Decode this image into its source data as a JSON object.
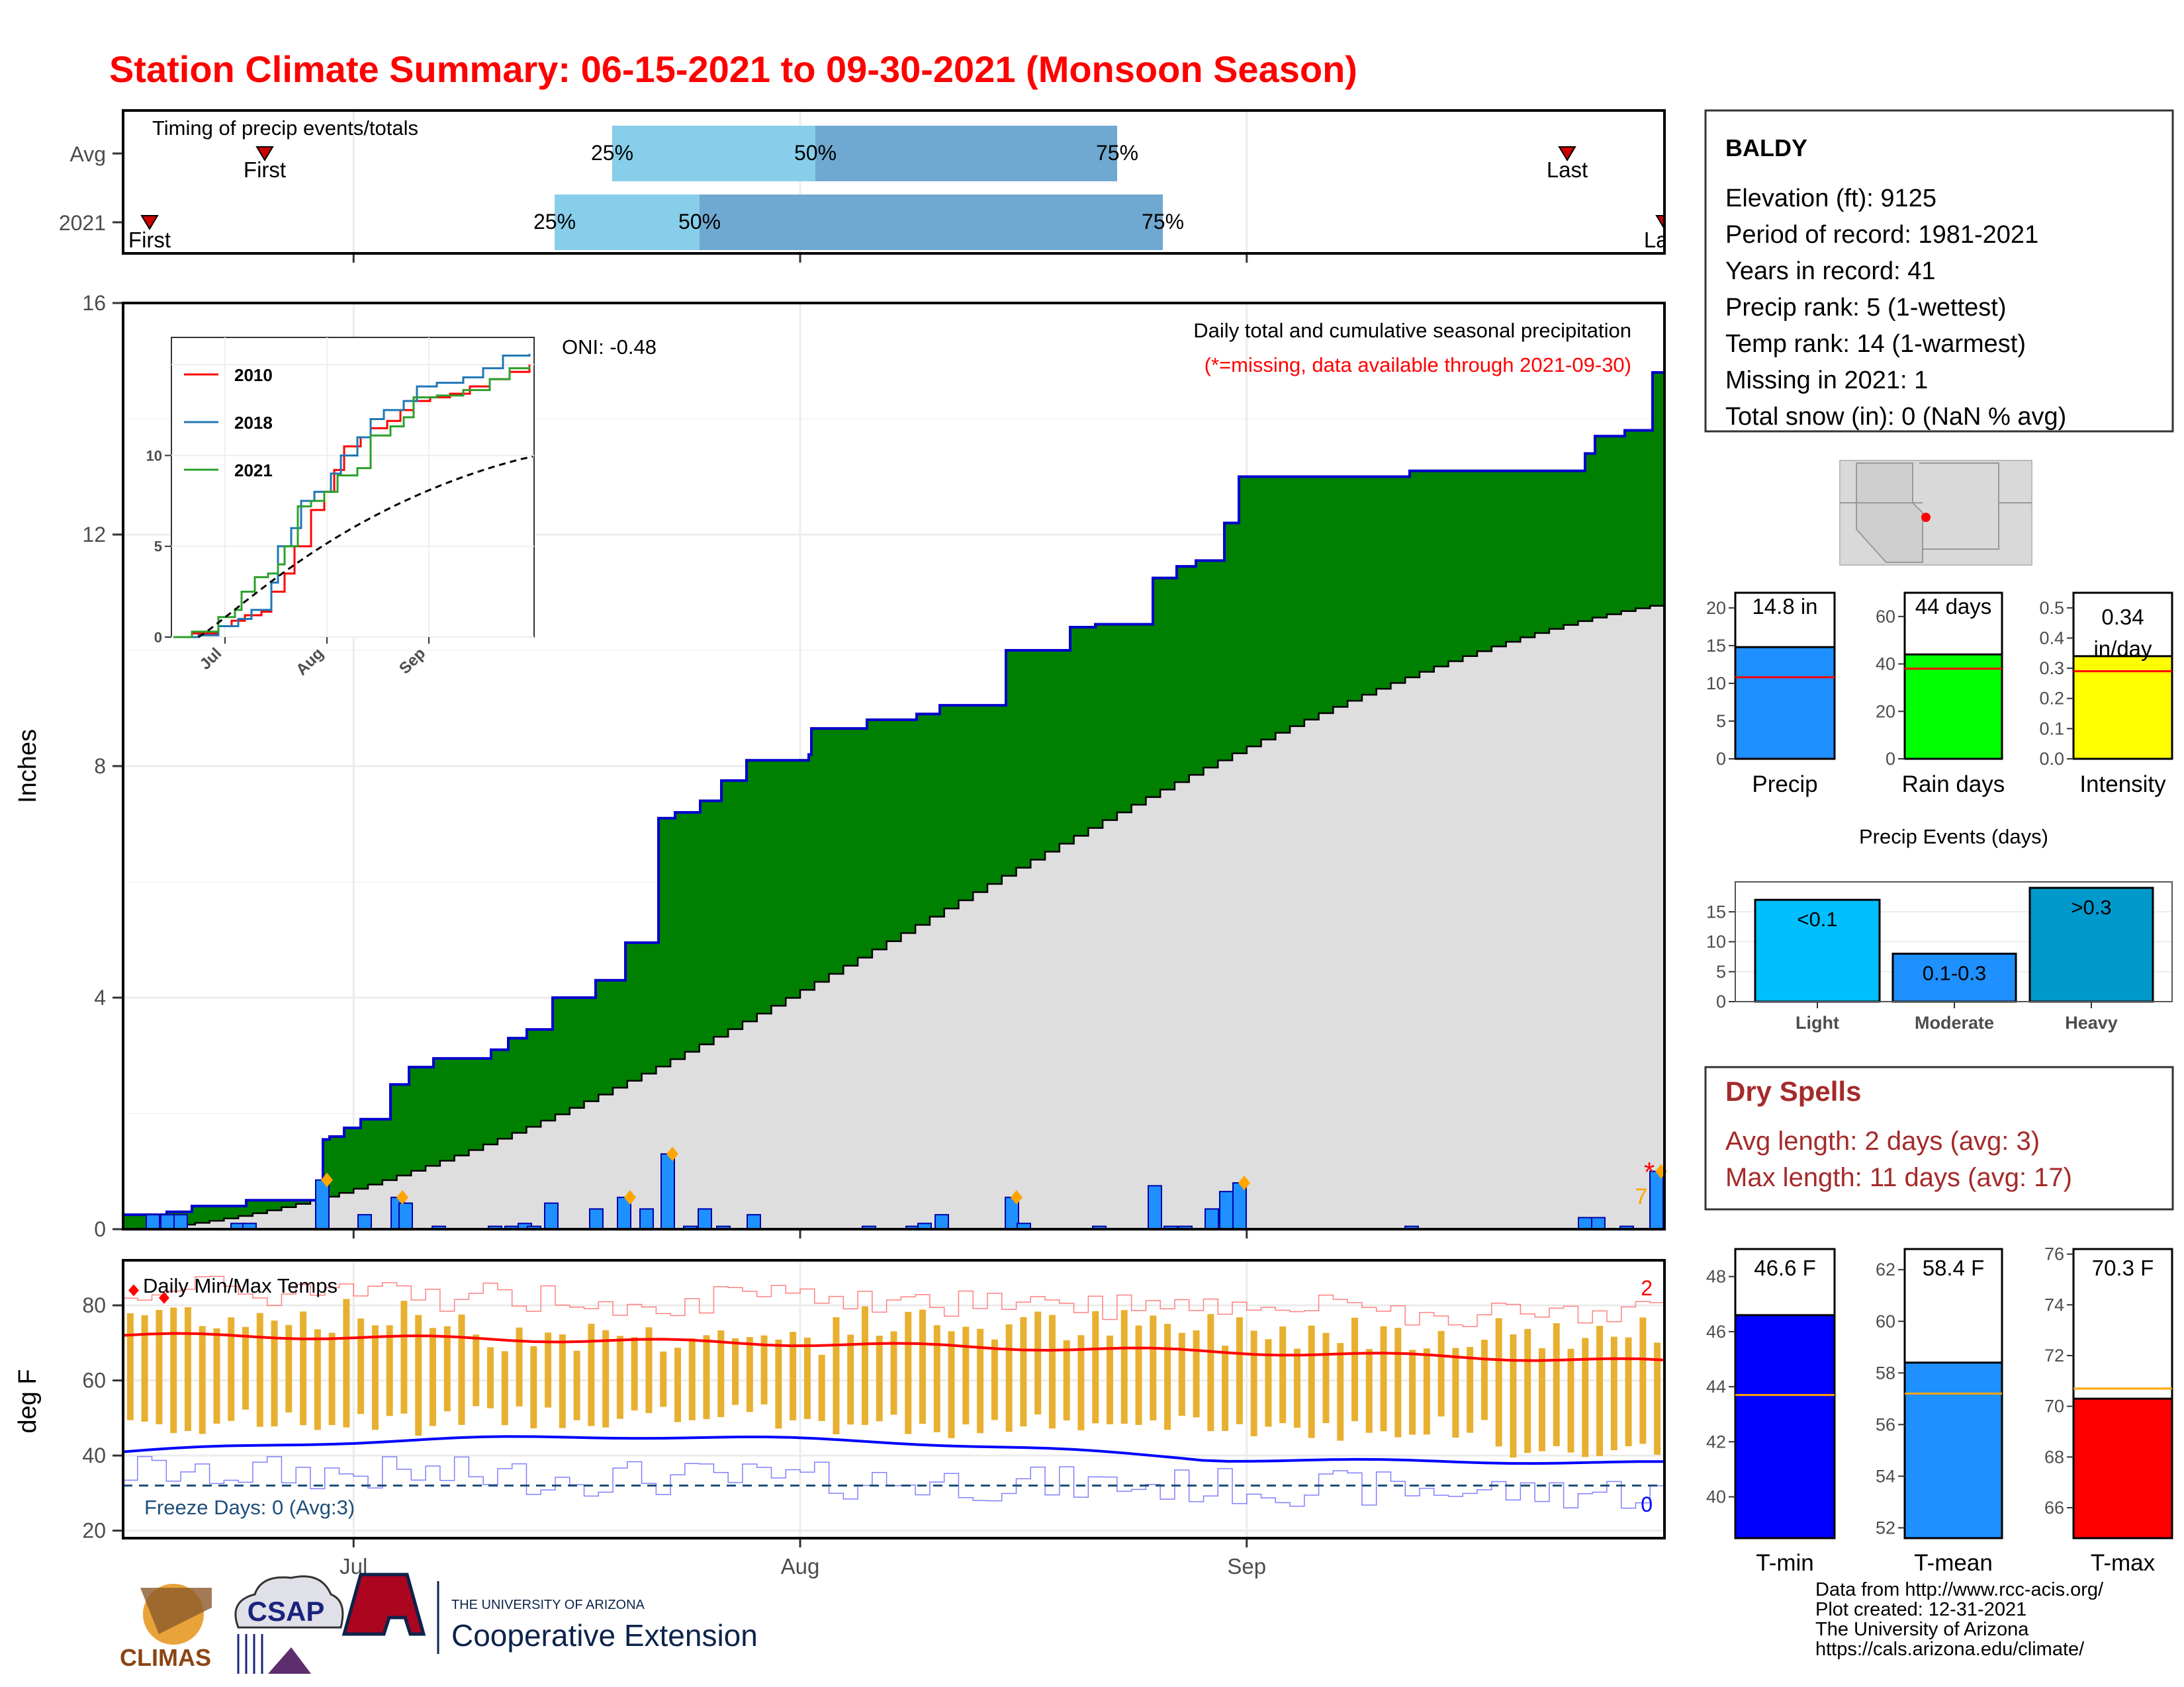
{
  "title": "Station Climate Summary: 06-15-2021 to 09-30-2021 (Monsoon Season)",
  "colors": {
    "title": "#ff0000",
    "precip_cumulative": "#008000",
    "precip_outline": "#0000cd",
    "avg_cumulative": "#dedede",
    "daily_bar": "#1e90ff",
    "temp_bar": "#e8b030",
    "tmax_line": "#ff0000",
    "tmin_line": "#0000ff",
    "dry_spell_text": "#a52a2a"
  },
  "timing_panel": {
    "label": "Timing of precip events/totals",
    "rows": [
      {
        "name": "Avg",
        "first": "First",
        "last": "Last",
        "q25": "25%",
        "q50": "50%",
        "q75": "75%"
      },
      {
        "name": "2021",
        "first": "First",
        "last": "Last",
        "q25": "25%",
        "q50": "50%",
        "q75": "75%"
      }
    ]
  },
  "precip_panel": {
    "ylabel": "Inches",
    "yticks": [
      "0",
      "4",
      "8",
      "12",
      "16"
    ],
    "annotation_line1": "Daily total and cumulative seasonal precipitation",
    "annotation_line2": "(*=missing, data available through 2021-09-30)",
    "oni": "ONI: -0.48",
    "missing_count_label": "7",
    "inset": {
      "series": [
        "2010",
        "2018",
        "2021"
      ],
      "colors": [
        "#ff0000",
        "#1f77b4",
        "#2ca02c"
      ],
      "yticks": [
        "0",
        "5",
        "10"
      ],
      "xticks": [
        "Jul",
        "Aug",
        "Sep"
      ]
    }
  },
  "temp_panel": {
    "ylabel": "deg F",
    "yticks": [
      "20",
      "40",
      "60",
      "80"
    ],
    "label": "Daily Min/Max Temps",
    "freeze": "Freeze Days: 0 (Avg:3)",
    "count_top": "2",
    "count_bottom": "0",
    "xticks": [
      "Jul",
      "Aug",
      "Sep"
    ]
  },
  "station_box": {
    "name": "BALDY",
    "lines": [
      "Elevation (ft): 9125",
      "Period of record: 1981-2021",
      "Years in record: 41",
      "Precip rank: 5 (1-wettest)",
      "Temp rank: 14 (1-warmest)",
      "Missing in 2021: 1",
      "Total snow (in): 0 (NaN % avg)"
    ]
  },
  "mini_bars": [
    {
      "label": "Precip",
      "value_label": "14.8 in",
      "yticks": [
        "0",
        "5",
        "10",
        "15",
        "20"
      ],
      "color": "#1e90ff"
    },
    {
      "label": "Rain days",
      "value_label": "44 days",
      "yticks": [
        "0",
        "20",
        "40",
        "60"
      ],
      "color": "#00ff00"
    },
    {
      "label": "Intensity",
      "value_label": "0.34 in/day",
      "value_line1": "0.34",
      "value_line2": "in/day",
      "yticks": [
        "0.0",
        "0.1",
        "0.2",
        "0.3",
        "0.4",
        "0.5"
      ],
      "color": "#ffff00"
    }
  ],
  "events_panel": {
    "title": "Precip Events (days)",
    "categories": [
      "Light",
      "Moderate",
      "Heavy"
    ],
    "labels": [
      "<0.1",
      "0.1-0.3",
      ">0.3"
    ],
    "yticks": [
      "0",
      "5",
      "10",
      "15"
    ]
  },
  "dry_spells": {
    "title": "Dry Spells",
    "avg": "Avg length: 2 days (avg: 3)",
    "max": "Max length: 11 days (avg: 17)"
  },
  "temp_bars": [
    {
      "label": "T-min",
      "value_label": "46.6 F",
      "yticks": [
        "40",
        "42",
        "44",
        "46",
        "48"
      ],
      "color": "#0000ff"
    },
    {
      "label": "T-mean",
      "value_label": "58.4 F",
      "yticks": [
        "52",
        "54",
        "56",
        "58",
        "60",
        "62"
      ],
      "color": "#1e90ff"
    },
    {
      "label": "T-max",
      "value_label": "70.3 F",
      "yticks": [
        "66",
        "68",
        "70",
        "72",
        "74",
        "76"
      ],
      "color": "#ff0000"
    }
  ],
  "logos": {
    "climas": "CLIMAS",
    "csap": "CSAP",
    "ua_small": "THE UNIVERSITY OF ARIZONA",
    "ua_big": "Cooperative Extension"
  },
  "credits": [
    "Data from http://www.rcc-acis.org/",
    "Plot created: 12-31-2021",
    "The University of Arizona",
    "https://cals.arizona.edu/climate/"
  ],
  "chart_data": {
    "type": "area",
    "title": "Daily total and cumulative seasonal precipitation",
    "ylabel": "Inches",
    "ylim": [
      0,
      16
    ],
    "x_range": [
      "2021-06-15",
      "2021-09-30"
    ],
    "xticks": [
      "Jul",
      "Aug",
      "Sep"
    ],
    "cumulative_2021_steps": [
      [
        "2021-06-15",
        0.25
      ],
      [
        "2021-06-18",
        0.35
      ],
      [
        "2021-06-27",
        0.45
      ],
      [
        "2021-07-04",
        1.5
      ],
      [
        "2021-07-06",
        1.75
      ],
      [
        "2021-07-08",
        2.0
      ],
      [
        "2021-07-10",
        2.6
      ],
      [
        "2021-07-13",
        2.9
      ],
      [
        "2021-07-15",
        3.0
      ],
      [
        "2021-07-23",
        3.15
      ],
      [
        "2021-07-25",
        3.45
      ],
      [
        "2021-07-28",
        4.0
      ],
      [
        "2021-08-02",
        4.3
      ],
      [
        "2021-08-05",
        4.95
      ],
      [
        "2021-08-09",
        7.05
      ],
      [
        "2021-08-11",
        7.2
      ],
      [
        "2021-08-14",
        7.45
      ],
      [
        "2021-08-16",
        7.65
      ],
      [
        "2021-08-22",
        8.15
      ],
      [
        "2021-08-26",
        8.55
      ],
      [
        "2021-09-03",
        8.85
      ],
      [
        "2021-09-09",
        9.2
      ],
      [
        "2021-09-14",
        10.0
      ],
      [
        "2021-09-21",
        10.5
      ],
      [
        "2021-09-23",
        11.5
      ],
      [
        "2021-09-26",
        11.7
      ],
      [
        "2021-09-28",
        12.2
      ],
      [
        "2021-09-30",
        13.1
      ]
    ],
    "cumulative_2021_tail": [
      [
        "2021-09-24",
        13.3
      ],
      [
        "2021-10-03",
        13.5
      ],
      [
        "2021-10-04",
        13.65
      ],
      [
        "2021-10-09",
        14.8
      ]
    ],
    "avg_cumulative_end": 10.8,
    "daily_precip_peaks": [
      {
        "date": "2021-07-04",
        "value": 0.85
      },
      {
        "date": "2021-07-10",
        "value": 0.55
      },
      {
        "date": "2021-08-09",
        "value": 1.3
      },
      {
        "date": "2021-09-01",
        "value": 0.8
      },
      {
        "date": "2021-09-30",
        "value": 1.0
      }
    ],
    "temp_series": {
      "ylim": [
        18,
        92
      ],
      "tmax_avg_range": [
        72,
        65
      ],
      "tmin_avg_range": [
        40,
        38
      ],
      "freeze_line": 32
    },
    "summary_values": {
      "precip_in": 14.8,
      "precip_avg_in": 10.8,
      "rain_days": 44,
      "rain_days_avg": 38,
      "intensity": 0.34,
      "intensity_avg": 0.29,
      "events_light": 17,
      "events_moderate": 8,
      "events_heavy": 19,
      "tmin": 46.6,
      "tmin_avg": 43.7,
      "tmean": 58.4,
      "tmean_avg": 57.2,
      "tmax": 70.3,
      "tmax_avg": 70.7
    }
  }
}
